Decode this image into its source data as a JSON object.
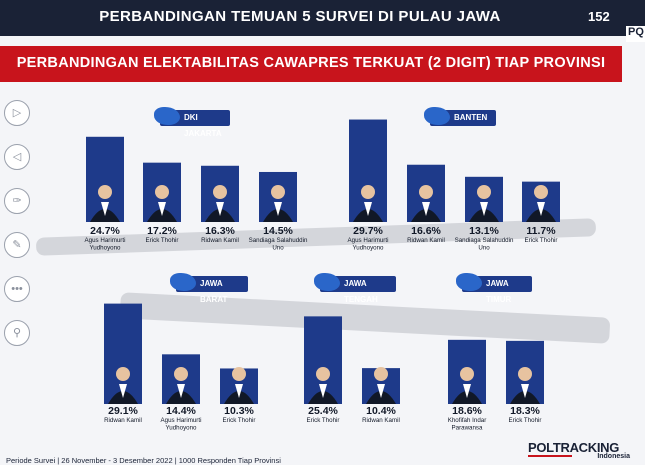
{
  "header": {
    "title": "PERBANDINGAN TEMUAN 5 SURVEI DI PULAU JAWA",
    "page_number": "152",
    "corner_badge": "PQ"
  },
  "subtitle": "PERBANDINGAN ELEKTABILITAS CAWAPRES TERKUAT (2 DIGIT) TIAP PROVINSI",
  "sidebar": {
    "icons": [
      "play-icon",
      "back-icon",
      "pen-icon",
      "edit-icon",
      "more-icon",
      "zoom-icon"
    ]
  },
  "colors": {
    "bar": "#1e3a8a",
    "header": "#1a2236",
    "accent": "#c8141c"
  },
  "chart_data": [
    {
      "type": "bar",
      "province": "DKI JAKARTA",
      "categories": [
        "Agus Harimurti Yudhoyono",
        "Erick Thohir",
        "Ridwan Kamil",
        "Sandiaga Salahuddin Uno"
      ],
      "values": [
        24.7,
        17.2,
        16.3,
        14.5
      ],
      "labels": [
        "24.7%",
        "17.2%",
        "16.3%",
        "14.5%"
      ]
    },
    {
      "type": "bar",
      "province": "BANTEN",
      "categories": [
        "Agus Harimurti Yudhoyono",
        "Ridwan Kamil",
        "Sandiaga Salahuddin Uno",
        "Erick Thohir"
      ],
      "values": [
        29.7,
        16.6,
        13.1,
        11.7
      ],
      "labels": [
        "29.7%",
        "16.6%",
        "13.1%",
        "11.7%"
      ]
    },
    {
      "type": "bar",
      "province": "JAWA BARAT",
      "categories": [
        "Ridwan Kamil",
        "Agus Harimurti Yudhoyono",
        "Erick Thohir"
      ],
      "values": [
        29.1,
        14.4,
        10.3
      ],
      "labels": [
        "29.1%",
        "14.4%",
        "10.3%"
      ]
    },
    {
      "type": "bar",
      "province": "JAWA TENGAH",
      "categories": [
        "Erick Thohir",
        "Ridwan Kamil"
      ],
      "values": [
        25.4,
        10.4
      ],
      "labels": [
        "25.4%",
        "10.4%"
      ]
    },
    {
      "type": "bar",
      "province": "JAWA TIMUR",
      "categories": [
        "Khofifah Indar Parawansa",
        "Erick Thohir"
      ],
      "values": [
        18.6,
        18.3
      ],
      "labels": [
        "18.6%",
        "18.3%"
      ]
    }
  ],
  "footer": {
    "note": "Periode Survei | 26 November - 3 Desember 2022 | 1000 Responden Tiap Provinsi",
    "logo_name": "POLTRACKING",
    "logo_sub": "Indonesia"
  }
}
